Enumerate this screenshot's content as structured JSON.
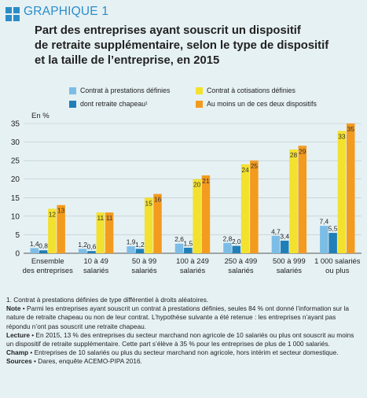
{
  "header": {
    "label": "GRAPHIQUE 1",
    "title_lines": [
      "Part des entreprises ayant souscrit un dispositif",
      "de retraite supplémentaire, selon le type de dispositif",
      "et la taille de l’entreprise, en 2015"
    ]
  },
  "colors": {
    "accent": "#2a8dc8",
    "background": "#e6f1f4"
  },
  "chart_data": {
    "type": "bar",
    "ylabel": "En %",
    "ylim": [
      0,
      35
    ],
    "yticks": [
      0,
      5,
      10,
      15,
      20,
      25,
      30,
      35
    ],
    "grid": true,
    "legend_position": "top",
    "categories": [
      [
        "Ensemble",
        "des entreprises"
      ],
      [
        "10 à 49",
        "salariés"
      ],
      [
        "50 à 99",
        "salariés"
      ],
      [
        "100 à 249",
        "salariés"
      ],
      [
        "250 à 499",
        "salariés"
      ],
      [
        "500 à 999",
        "salariés"
      ],
      [
        "1 000 salariés",
        "ou plus"
      ]
    ],
    "series": [
      {
        "name": "Contrat à prestations définies",
        "name_sup": "",
        "color": "#7cbde6",
        "values": [
          1.4,
          1.2,
          1.9,
          2.6,
          2.8,
          4.7,
          7.4
        ],
        "labels": [
          "1,4",
          "1,2",
          "1,9",
          "2,6",
          "2,8",
          "4,7",
          "7,4"
        ]
      },
      {
        "name": "dont retraite chapeau",
        "name_sup": "1",
        "color": "#1f7fb8",
        "values": [
          0.8,
          0.6,
          1.2,
          1.5,
          2.0,
          3.4,
          5.5
        ],
        "labels": [
          "0,8",
          "0,6",
          "1,2",
          "1,5",
          "2,0",
          "3,4",
          "5,5"
        ]
      },
      {
        "name": "Contrat à cotisations définies",
        "name_sup": "",
        "color": "#f3e12f",
        "values": [
          12,
          11,
          15,
          20,
          24,
          28,
          33
        ],
        "labels": [
          "12",
          "11",
          "15",
          "20",
          "24",
          "28",
          "33"
        ]
      },
      {
        "name": "Au moins un de ces deux dispositifs",
        "name_sup": "",
        "color": "#f39b1f",
        "values": [
          13,
          11,
          16,
          21,
          25,
          29,
          35
        ],
        "labels": [
          "13",
          "11",
          "16",
          "21",
          "25",
          "29",
          "35"
        ]
      }
    ]
  },
  "footnotes": {
    "note1": "1. Contrat à prestations définies de type différentiel à droits aléatoires.",
    "note_label": "Note",
    "note_text": " • Parmi les entreprises ayant souscrit un contrat à prestations définies, seules 84 % ont donné l’information sur la nature de retraite chapeau ou non de leur contrat. L’hypothèse suivante a été retenue : les entreprises n’ayant pas répondu n’ont pas souscrit une retraite chapeau.",
    "lecture_label": "Lecture",
    "lecture_text": " • En 2015, 13 % des entreprises du secteur marchand non agricole de 10 salariés ou plus ont souscrit au moins un dispositif de retraite supplémentaire. Cette part s’élève à 35 % pour les entreprises de plus de 1 000 salariés.",
    "champ_label": "Champ",
    "champ_text": " • Entreprises de 10 salariés ou plus du secteur marchand non agricole, hors intérim et secteur domestique.",
    "sources_label": "Sources",
    "sources_text": " • Dares, enquête ACEMO-PIPA 2016."
  }
}
